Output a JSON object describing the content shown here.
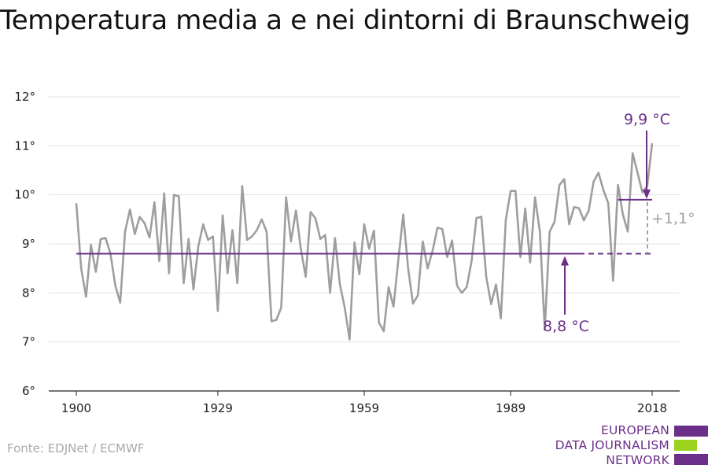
{
  "title": "Temperatura media a e nei dintorni di Braunschweig",
  "source": "Fonte: EDJNet / ECMWF",
  "logo": {
    "lines": [
      "EUROPEAN",
      "DATA JOURNALISM",
      "NETWORK"
    ],
    "colors": [
      "#6b2f8a",
      "#9bd21c",
      "#6b2f8a"
    ]
  },
  "chart_data": {
    "type": "line",
    "title": "Temperatura media a e nei dintorni di Braunschweig",
    "xlabel": "",
    "ylabel": "",
    "xlim": [
      1900,
      2018
    ],
    "ylim": [
      6,
      12
    ],
    "x_ticks": [
      1900,
      1929,
      1959,
      1989,
      2018
    ],
    "x_tick_labels": [
      "1900",
      "1929",
      "1959",
      "1989",
      "2018"
    ],
    "y_ticks": [
      6,
      7,
      8,
      9,
      10,
      11,
      12
    ],
    "y_tick_labels": [
      "6°",
      "7°",
      "8°",
      "9°",
      "10°",
      "11°",
      "12°"
    ],
    "grid": true,
    "line_color": "#9e9e9e",
    "accent_color": "#6b2f8a",
    "series": [
      {
        "x": [
          1900,
          1901,
          1902,
          1903,
          1904,
          1905,
          1906,
          1907,
          1908,
          1909,
          1910,
          1911,
          1912,
          1913,
          1914,
          1915,
          1916,
          1917,
          1918,
          1919,
          1920,
          1921,
          1922,
          1923,
          1924,
          1925,
          1926,
          1927,
          1928,
          1929,
          1930,
          1931,
          1932,
          1933,
          1934,
          1935,
          1936,
          1937,
          1938,
          1939,
          1940,
          1941,
          1942,
          1943,
          1944,
          1945,
          1946,
          1947,
          1948,
          1949,
          1950,
          1951,
          1952,
          1953,
          1954,
          1955,
          1956,
          1957,
          1958,
          1959,
          1960,
          1961,
          1962,
          1963,
          1964,
          1965,
          1966,
          1967,
          1968,
          1969,
          1970,
          1971,
          1972,
          1973,
          1974,
          1975,
          1976,
          1977,
          1978,
          1979,
          1980,
          1981,
          1982,
          1983,
          1984,
          1985,
          1986,
          1987,
          1988,
          1989,
          1990,
          1991,
          1992,
          1993,
          1994,
          1995,
          1996,
          1997,
          1998,
          1999,
          2000,
          2001,
          2002,
          2003,
          2004,
          2005,
          2006,
          2007,
          2008,
          2009,
          2010,
          2011,
          2012,
          2013,
          2014,
          2015,
          2016,
          2017,
          2018
        ],
        "values": [
          9.83,
          8.5,
          7.92,
          8.98,
          8.43,
          9.1,
          9.12,
          8.8,
          8.15,
          7.8,
          9.25,
          9.7,
          9.2,
          9.55,
          9.42,
          9.13,
          9.85,
          8.65,
          10.03,
          8.4,
          10.0,
          9.97,
          8.2,
          9.1,
          8.07,
          8.95,
          9.4,
          9.08,
          9.15,
          7.63,
          9.58,
          8.4,
          9.28,
          8.2,
          10.18,
          9.08,
          9.15,
          9.28,
          9.5,
          9.25,
          7.42,
          7.45,
          7.7,
          9.95,
          9.05,
          9.68,
          8.9,
          8.33,
          9.65,
          9.52,
          9.1,
          9.18,
          8.0,
          9.12,
          8.18,
          7.7,
          7.05,
          9.03,
          8.38,
          9.4,
          8.9,
          9.27,
          7.4,
          7.22,
          8.12,
          7.72,
          8.68,
          9.6,
          8.5,
          7.78,
          7.95,
          9.05,
          8.5,
          8.85,
          9.33,
          9.3,
          8.73,
          9.07,
          8.15,
          8.0,
          8.12,
          8.65,
          9.53,
          9.55,
          8.33,
          7.77,
          8.17,
          7.48,
          9.48,
          10.08,
          10.08,
          8.73,
          9.72,
          8.62,
          9.95,
          9.25,
          7.25,
          9.25,
          9.45,
          10.2,
          10.32,
          9.4,
          9.75,
          9.73,
          9.48,
          9.68,
          10.27,
          10.45,
          10.1,
          9.83,
          8.25,
          10.2,
          9.6,
          9.25,
          10.85,
          10.45,
          10.05,
          10.18,
          11.05
        ]
      }
    ],
    "baseline": {
      "value": 8.8,
      "label": "8,8 °C",
      "x_start": 1900,
      "x_end": 2018
    },
    "recent": {
      "value": 9.9,
      "label": "9,9 °C",
      "x_start": 2011,
      "x_end": 2018
    },
    "difference_label": "+1,1°"
  }
}
